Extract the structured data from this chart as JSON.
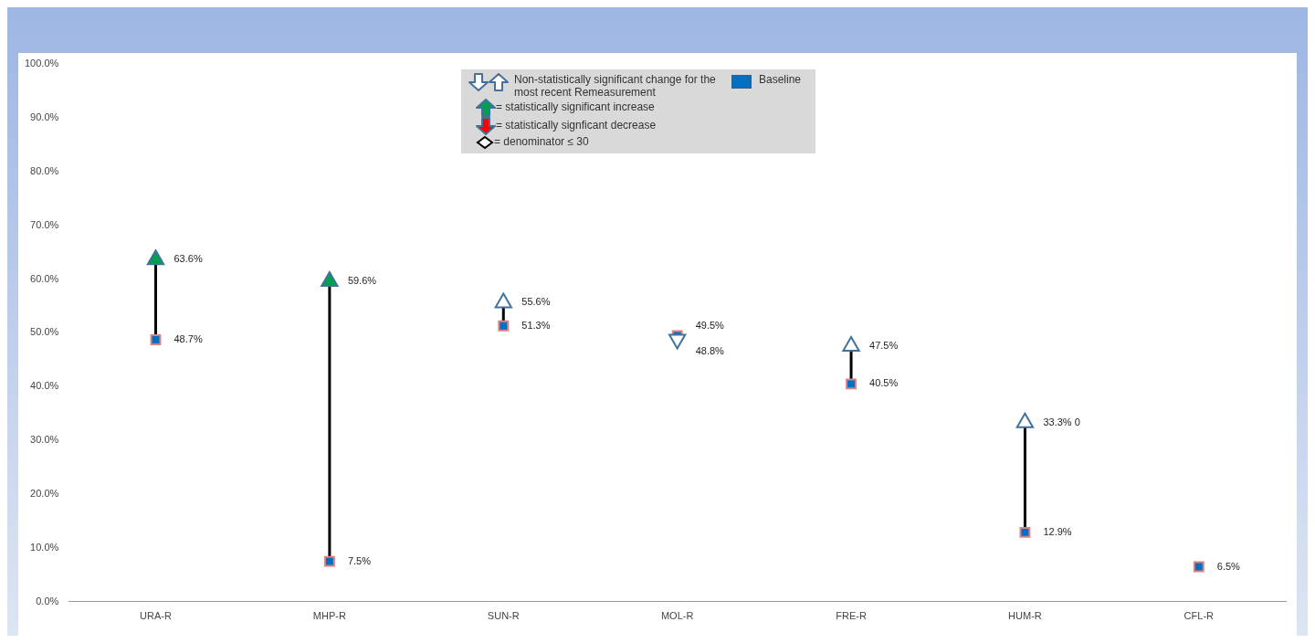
{
  "chart_data": {
    "type": "scatter",
    "categories": [
      "URA-R",
      "MHP-R",
      "SUN-R",
      "MOL-R",
      "FRE-R",
      "HUM-R",
      "CFL-R"
    ],
    "series": [
      {
        "name": "Baseline",
        "color": "#0070c0",
        "marker": "square",
        "values": [
          48.7,
          7.5,
          51.3,
          49.5,
          40.5,
          12.9,
          6.5
        ],
        "value_labels": [
          "48.7%",
          "7.5%",
          "51.3%",
          "49.5%",
          "40.5%",
          "12.9%",
          "6.5%"
        ]
      },
      {
        "color": "#41719c",
        "colors": [
          "#00a050",
          "#00a050",
          "#ffffff",
          "#ffffff",
          "#ffffff",
          "#ffffff",
          null
        ],
        "marker": "triangle",
        "values": [
          63.6,
          59.6,
          55.6,
          48.8,
          47.5,
          33.3,
          null
        ],
        "value_labels": [
          "63.6%",
          "59.6%",
          "55.6%",
          "48.8%",
          "47.5%",
          "33.3% 0",
          null
        ]
      }
    ],
    "ylim": [
      0,
      100
    ],
    "yticks": [
      {
        "value": 0,
        "label": "0.0%"
      },
      {
        "value": 10,
        "label": "10.0%"
      },
      {
        "value": 20,
        "label": "20.0%"
      },
      {
        "value": 30,
        "label": "30.0%"
      },
      {
        "value": 40,
        "label": "40.0%"
      },
      {
        "value": 50,
        "label": "50.0%"
      },
      {
        "value": 60,
        "label": "60.0%"
      },
      {
        "value": 70,
        "label": "70.0%"
      },
      {
        "value": 80,
        "label": "80.0%"
      },
      {
        "value": 90,
        "label": "90.0%"
      },
      {
        "value": 100,
        "label": "100.0%"
      }
    ],
    "grid": false,
    "legend": "top",
    "annotations": [
      "Non-statistically significant change for the most recent Remeasurement",
      "= statistically significant increase",
      "= statistically signficant decrease",
      "= denominator ≤ 30"
    ]
  }
}
